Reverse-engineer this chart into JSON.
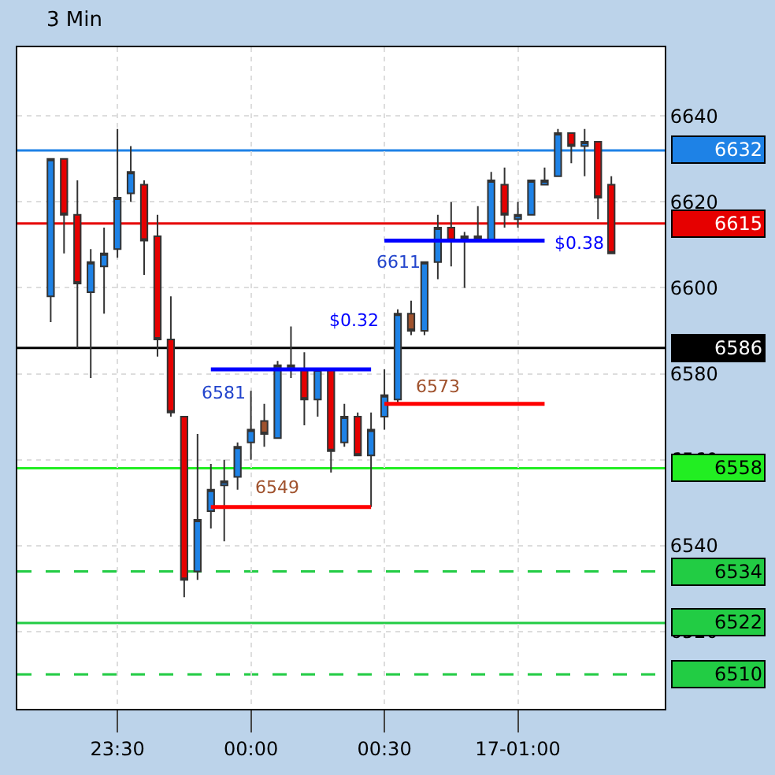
{
  "chart_data": {
    "type": "candlestick",
    "title": "3 Min",
    "categories": [
      null,
      null,
      null,
      null,
      null,
      "23:30",
      null,
      null,
      null,
      null,
      null,
      null,
      null,
      null,
      null,
      "00:00",
      null,
      null,
      null,
      null,
      null,
      null,
      null,
      null,
      null,
      "00:30",
      null,
      null,
      null,
      null,
      null,
      null,
      null,
      null,
      null,
      "17-01:00",
      null,
      null,
      null,
      null,
      null,
      null,
      null
    ],
    "ohlc": [
      [
        6598,
        6630,
        6592,
        6630
      ],
      [
        6630,
        6630,
        6608,
        6617
      ],
      [
        6617,
        6625,
        6586,
        6601
      ],
      [
        6599,
        6609,
        6579,
        6606
      ],
      [
        6605,
        6614,
        6594,
        6608
      ],
      [
        6609,
        6637,
        6607,
        6621
      ],
      [
        6622,
        6633,
        6620,
        6627
      ],
      [
        6624,
        6625,
        6603,
        6611
      ],
      [
        6612,
        6617,
        6584,
        6588
      ],
      [
        6588,
        6598,
        6570,
        6571
      ],
      [
        6570,
        6570,
        6528,
        6532
      ],
      [
        6534,
        6566,
        6532,
        6546
      ],
      [
        6548,
        6559,
        6544,
        6553
      ],
      [
        6554,
        6560,
        6541,
        6555
      ],
      [
        6556,
        6564,
        6553,
        6563
      ],
      [
        6564,
        6576,
        6560,
        6567
      ],
      [
        6569,
        6573,
        6563,
        6566
      ],
      [
        6565,
        6583,
        6565,
        6582
      ],
      [
        6581,
        6591,
        6579,
        6582
      ],
      [
        6581,
        6585,
        6568,
        6574
      ],
      [
        6574,
        6581,
        6570,
        6581
      ],
      [
        6581,
        6581,
        6557,
        6562
      ],
      [
        6564,
        6573,
        6563,
        6570
      ],
      [
        6570,
        6571,
        6561,
        6561
      ],
      [
        6561,
        6571,
        6549,
        6567
      ],
      [
        6570,
        6581,
        6567,
        6575
      ],
      [
        6574,
        6595,
        6573,
        6594
      ],
      [
        6594,
        6597,
        6589,
        6590
      ],
      [
        6590,
        6606,
        6589,
        6606
      ],
      [
        6606,
        6617,
        6602,
        6614
      ],
      [
        6614,
        6620,
        6605,
        6611
      ],
      [
        6611,
        6613,
        6600,
        6612
      ],
      [
        6611,
        6619,
        6611,
        6612
      ],
      [
        6611,
        6627,
        6611,
        6625
      ],
      [
        6624,
        6628,
        6614,
        6617
      ],
      [
        6616,
        6620,
        6614,
        6617
      ],
      [
        6617,
        6625,
        6617,
        6625
      ],
      [
        6624,
        6628,
        6624,
        6625
      ],
      [
        6626,
        6637,
        6626,
        6636
      ],
      [
        6636,
        6636,
        6629,
        6633
      ],
      [
        6633,
        6637,
        6626,
        6634
      ],
      [
        6634,
        6634,
        6616,
        6621
      ],
      [
        6624,
        6626,
        6608,
        6608
      ]
    ],
    "colors": [
      "#1e82e6",
      "#e60000",
      "#e60000",
      "#1e82e6",
      "#1e82e6",
      "#1e82e6",
      "#1e82e6",
      "#e60000",
      "#e60000",
      "#e60000",
      "#e60000",
      "#1e82e6",
      "#1e82e6",
      "#1e82e6",
      "#1e82e6",
      "#1e82e6",
      "#a0522d",
      "#1e82e6",
      "#1e82e6",
      "#e60000",
      "#1e82e6",
      "#e60000",
      "#1e82e6",
      "#e60000",
      "#1e82e6",
      "#1e82e6",
      "#1e82e6",
      "#a0522d",
      "#1e82e6",
      "#1e82e6",
      "#e60000",
      "#1e82e6",
      "#1e82e6",
      "#1e82e6",
      "#e60000",
      "#1e82e6",
      "#1e82e6",
      "#1e82e6",
      "#1e82e6",
      "#e60000",
      "#1e82e6",
      "#e60000",
      "#e60000"
    ],
    "series": [
      {
        "type": "line",
        "color": "#0000ff",
        "values": [
          null,
          null,
          null,
          null,
          null,
          null,
          null,
          null,
          null,
          null,
          null,
          null,
          6581,
          6581,
          6581,
          6581,
          6581,
          6581,
          6581,
          6581,
          6581,
          6581,
          6581,
          6581,
          6581,
          null,
          null,
          null,
          null,
          null,
          null,
          null,
          null,
          null,
          null,
          null,
          null,
          null,
          null,
          null,
          null,
          null,
          null
        ]
      },
      {
        "type": "line",
        "color": "#ff0000",
        "values": [
          null,
          null,
          null,
          null,
          null,
          null,
          null,
          null,
          null,
          null,
          null,
          null,
          6549,
          6549,
          6549,
          6549,
          6549,
          6549,
          6549,
          6549,
          6549,
          6549,
          6549,
          6549,
          6549,
          null,
          null,
          null,
          null,
          null,
          null,
          null,
          null,
          null,
          null,
          null,
          null,
          null,
          null,
          null,
          null,
          null,
          null
        ]
      },
      {
        "type": "line",
        "color": "#0000ff",
        "values": [
          null,
          null,
          null,
          null,
          null,
          null,
          null,
          null,
          null,
          null,
          null,
          null,
          null,
          null,
          null,
          null,
          null,
          null,
          null,
          null,
          null,
          null,
          null,
          null,
          null,
          6611,
          6611,
          6611,
          6611,
          6611,
          6611,
          6611,
          6611,
          6611,
          6611,
          6611,
          6611,
          6611,
          null,
          null,
          null,
          null,
          null
        ]
      },
      {
        "type": "line",
        "color": "#ff0000",
        "values": [
          null,
          null,
          null,
          null,
          null,
          null,
          null,
          null,
          null,
          null,
          null,
          null,
          null,
          null,
          null,
          null,
          null,
          null,
          null,
          null,
          null,
          null,
          null,
          null,
          null,
          6573,
          6573,
          6573,
          6573,
          6573,
          6573,
          6573,
          6573,
          6573,
          6573,
          6573,
          6573,
          6573,
          null,
          null,
          null,
          null,
          null
        ]
      }
    ],
    "ylim": [
      6502,
      6656
    ],
    "yticks": [
      6520,
      6540,
      6560,
      6580,
      6600,
      6620,
      6640
    ],
    "grid": true,
    "ref_lines": [
      {
        "axis": "y",
        "value": 6632,
        "label": "6632",
        "color": "#1e82e6",
        "line_style": "solid"
      },
      {
        "axis": "y",
        "value": 6615,
        "label": "6615",
        "color": "#e60000",
        "line_style": "solid"
      },
      {
        "axis": "y",
        "value": 6586,
        "label": "6586",
        "color": "#000000",
        "line_style": "solid"
      },
      {
        "axis": "y",
        "value": 6558,
        "label": "6558",
        "color": "#22ee22",
        "line_style": "solid"
      },
      {
        "axis": "y",
        "value": 6534,
        "label": "6534",
        "color": "#22cc44",
        "line_style": "dashed"
      },
      {
        "axis": "y",
        "value": 6522,
        "label": "6522",
        "color": "#22cc44",
        "line_style": "solid"
      },
      {
        "axis": "y",
        "value": 6510,
        "label": "6510",
        "color": "#22cc44",
        "line_style": "dashed"
      }
    ],
    "annotations": [
      "$0.32",
      "6581",
      "6549",
      "$0.38",
      "6611",
      "6573"
    ]
  }
}
